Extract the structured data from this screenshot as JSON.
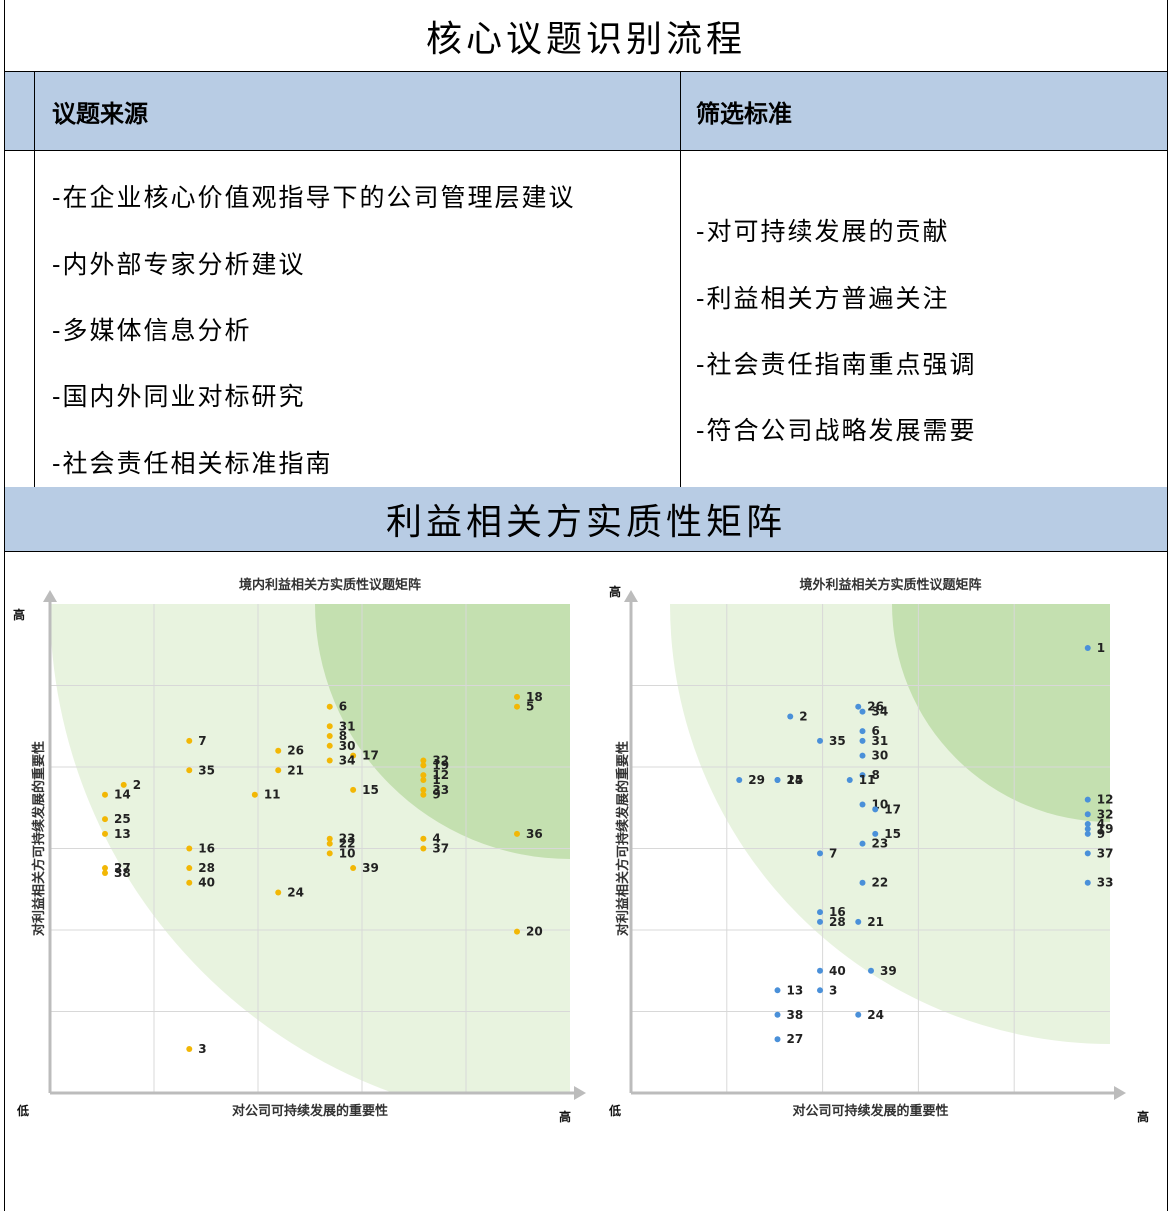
{
  "process": {
    "title": "核心议题识别流程",
    "col_source_header": "议题来源",
    "col_criteria_header": "筛选标准",
    "sources": [
      "-在企业核心价值观指导下的公司管理层建议",
      "-内外部专家分析建议",
      "-多媒体信息分析",
      "-国内外同业对标研究",
      "-社会责任相关标准指南"
    ],
    "criteria": [
      "-对可持续发展的贡献",
      "-利益相关方普遍关注",
      "-社会责任指南重点强调",
      "-符合公司战略发展需要"
    ]
  },
  "matrix_section": {
    "title": "利益相关方实质性矩阵"
  },
  "colors": {
    "header_band": "#b8cce4",
    "zone_light": "#e8f3df",
    "zone_dark": "#c4e0b0",
    "domestic_point": "#f2b705",
    "overseas_point": "#4a90d9",
    "axis": "#bcbcbc",
    "grid": "#d8d8d8"
  },
  "chart_data": [
    {
      "type": "scatter",
      "title": "境内利益相关方实质性议题矩阵",
      "xlabel": "对公司可持续发展的重要性",
      "ylabel": "对利益相关方可持续发展的重要性",
      "x_low_label": "低",
      "x_high_label": "高",
      "y_high_label": "高",
      "xlim": [
        0,
        5
      ],
      "ylim": [
        0,
        5
      ],
      "grid": true,
      "points": [
        {
          "label": "1",
          "x": 4.0,
          "y": 3.2
        },
        {
          "label": "2",
          "x": 0.8,
          "y": 3.15
        },
        {
          "label": "3",
          "x": 1.5,
          "y": 0.45
        },
        {
          "label": "4",
          "x": 4.0,
          "y": 2.6
        },
        {
          "label": "5",
          "x": 5.0,
          "y": 3.95
        },
        {
          "label": "6",
          "x": 3.0,
          "y": 3.95
        },
        {
          "label": "7",
          "x": 1.5,
          "y": 3.6
        },
        {
          "label": "8",
          "x": 3.0,
          "y": 3.65
        },
        {
          "label": "9",
          "x": 4.0,
          "y": 3.05
        },
        {
          "label": "10",
          "x": 3.0,
          "y": 2.45
        },
        {
          "label": "11",
          "x": 2.2,
          "y": 3.05
        },
        {
          "label": "12",
          "x": 4.0,
          "y": 3.25
        },
        {
          "label": "13",
          "x": 0.6,
          "y": 2.65
        },
        {
          "label": "14",
          "x": 0.6,
          "y": 3.05
        },
        {
          "label": "15",
          "x": 3.25,
          "y": 3.1
        },
        {
          "label": "16",
          "x": 1.5,
          "y": 2.5
        },
        {
          "label": "17",
          "x": 3.25,
          "y": 3.45
        },
        {
          "label": "18",
          "x": 5.0,
          "y": 4.05
        },
        {
          "label": "19",
          "x": 4.0,
          "y": 3.35
        },
        {
          "label": "20",
          "x": 5.0,
          "y": 1.65
        },
        {
          "label": "21",
          "x": 2.45,
          "y": 3.3
        },
        {
          "label": "22",
          "x": 3.0,
          "y": 2.55
        },
        {
          "label": "23",
          "x": 3.0,
          "y": 2.6
        },
        {
          "label": "24",
          "x": 2.45,
          "y": 2.05
        },
        {
          "label": "25",
          "x": 0.6,
          "y": 2.8
        },
        {
          "label": "26",
          "x": 2.45,
          "y": 3.5
        },
        {
          "label": "27",
          "x": 0.6,
          "y": 2.3
        },
        {
          "label": "28",
          "x": 1.5,
          "y": 2.3
        },
        {
          "label": "30",
          "x": 3.0,
          "y": 3.55
        },
        {
          "label": "31",
          "x": 3.0,
          "y": 3.75
        },
        {
          "label": "32",
          "x": 4.0,
          "y": 3.4
        },
        {
          "label": "33",
          "x": 4.0,
          "y": 3.1
        },
        {
          "label": "34",
          "x": 3.0,
          "y": 3.4
        },
        {
          "label": "35",
          "x": 1.5,
          "y": 3.3
        },
        {
          "label": "36",
          "x": 5.0,
          "y": 2.65
        },
        {
          "label": "37",
          "x": 4.0,
          "y": 2.5
        },
        {
          "label": "38",
          "x": 0.6,
          "y": 2.25
        },
        {
          "label": "39",
          "x": 3.25,
          "y": 2.3
        },
        {
          "label": "40",
          "x": 1.5,
          "y": 2.15
        }
      ]
    },
    {
      "type": "scatter",
      "title": "境外利益相关方实质性议题矩阵",
      "xlabel": "对公司可持续发展的重要性",
      "ylabel": "对利益相关方可持续发展的重要性",
      "x_low_label": "低",
      "x_high_label": "高",
      "y_high_label": "高",
      "xlim": [
        0,
        5
      ],
      "ylim": [
        0,
        5
      ],
      "grid": true,
      "points": [
        {
          "label": "1",
          "x": 4.75,
          "y": 4.55
        },
        {
          "label": "2",
          "x": 1.25,
          "y": 3.85
        },
        {
          "label": "3",
          "x": 1.6,
          "y": 1.05
        },
        {
          "label": "4",
          "x": 4.75,
          "y": 2.75
        },
        {
          "label": "6",
          "x": 2.1,
          "y": 3.7
        },
        {
          "label": "7",
          "x": 1.6,
          "y": 2.45
        },
        {
          "label": "8",
          "x": 2.1,
          "y": 3.25
        },
        {
          "label": "9",
          "x": 4.75,
          "y": 2.65
        },
        {
          "label": "10",
          "x": 2.1,
          "y": 2.95
        },
        {
          "label": "11",
          "x": 1.95,
          "y": 3.2
        },
        {
          "label": "12",
          "x": 4.75,
          "y": 3.0
        },
        {
          "label": "13",
          "x": 1.1,
          "y": 1.05
        },
        {
          "label": "14",
          "x": 1.1,
          "y": 3.2
        },
        {
          "label": "15",
          "x": 2.25,
          "y": 2.65
        },
        {
          "label": "16",
          "x": 1.6,
          "y": 1.85
        },
        {
          "label": "17",
          "x": 2.25,
          "y": 2.9
        },
        {
          "label": "19",
          "x": 4.75,
          "y": 2.7
        },
        {
          "label": "21",
          "x": 2.05,
          "y": 1.75
        },
        {
          "label": "22",
          "x": 2.1,
          "y": 2.15
        },
        {
          "label": "23",
          "x": 2.1,
          "y": 2.55
        },
        {
          "label": "24",
          "x": 2.05,
          "y": 0.8
        },
        {
          "label": "25",
          "x": 1.1,
          "y": 3.2
        },
        {
          "label": "26",
          "x": 2.05,
          "y": 3.95
        },
        {
          "label": "27",
          "x": 1.1,
          "y": 0.55
        },
        {
          "label": "28",
          "x": 1.6,
          "y": 1.75
        },
        {
          "label": "29",
          "x": 0.65,
          "y": 3.2
        },
        {
          "label": "30",
          "x": 2.1,
          "y": 3.45
        },
        {
          "label": "31",
          "x": 2.1,
          "y": 3.6
        },
        {
          "label": "32",
          "x": 4.75,
          "y": 2.85
        },
        {
          "label": "33",
          "x": 4.75,
          "y": 2.15
        },
        {
          "label": "34",
          "x": 2.1,
          "y": 3.9
        },
        {
          "label": "35",
          "x": 1.6,
          "y": 3.6
        },
        {
          "label": "37",
          "x": 4.75,
          "y": 2.45
        },
        {
          "label": "38",
          "x": 1.1,
          "y": 0.8
        },
        {
          "label": "39",
          "x": 2.2,
          "y": 1.25
        },
        {
          "label": "40",
          "x": 1.6,
          "y": 1.25
        }
      ]
    }
  ]
}
